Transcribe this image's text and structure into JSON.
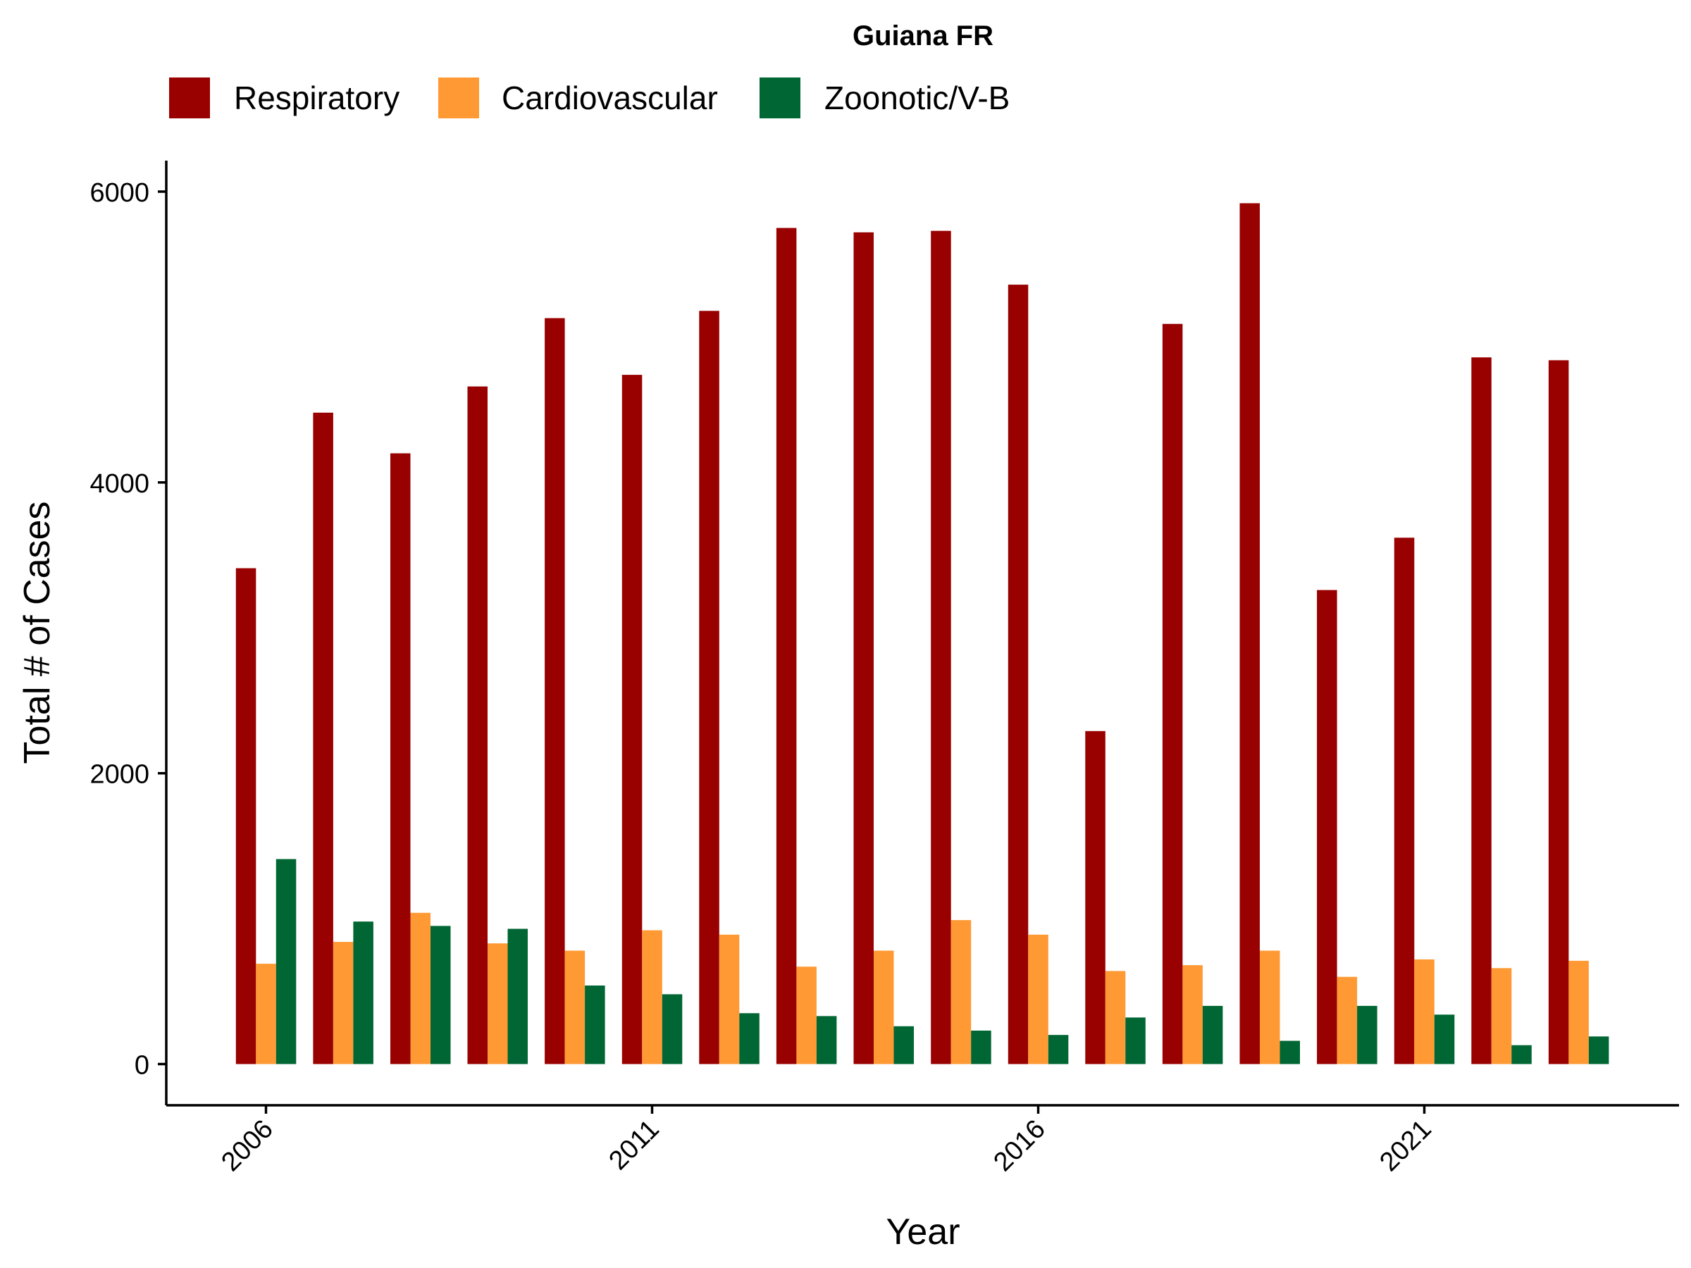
{
  "chart_data": {
    "type": "bar",
    "title": "Guiana FR",
    "xlabel": "Year",
    "ylabel": "Total # of Cases",
    "categories": [
      "2006",
      "2007",
      "2008",
      "2009",
      "2010",
      "2011",
      "2012",
      "2013",
      "2014",
      "2015",
      "2016",
      "2017",
      "2018",
      "2019",
      "2020",
      "2021",
      "2022",
      "2023"
    ],
    "x_ticks": [
      "2006",
      "2011",
      "2016",
      "2021"
    ],
    "y_ticks": [
      0,
      2000,
      4000,
      6000
    ],
    "ylim": [
      -300,
      6250
    ],
    "grid": false,
    "legend_position": "top",
    "series": [
      {
        "name": "Respiratory",
        "color": "#990000",
        "values": [
          3410,
          4480,
          4200,
          4660,
          5130,
          4740,
          5180,
          5750,
          5720,
          5730,
          5360,
          2290,
          5090,
          5920,
          3260,
          3620,
          4860,
          4840
        ]
      },
      {
        "name": "Cardiovascular",
        "color": "#FF9933",
        "values": [
          690,
          840,
          1040,
          830,
          780,
          920,
          890,
          670,
          780,
          990,
          890,
          640,
          680,
          780,
          600,
          720,
          660,
          710
        ]
      },
      {
        "name": "Zoonotic/V-B",
        "color": "#006633",
        "values": [
          1410,
          980,
          950,
          930,
          540,
          480,
          350,
          330,
          260,
          230,
          200,
          320,
          400,
          160,
          400,
          340,
          130,
          190
        ]
      }
    ]
  }
}
